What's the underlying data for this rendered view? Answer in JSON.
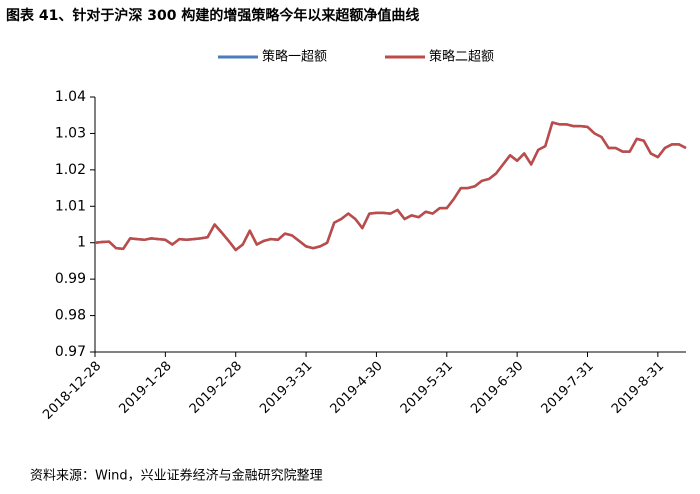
{
  "title": "图表 41、针对于沪深 300 构建的增强策略今年以来超额净值曲线",
  "source": "资料来源：Wind，兴业证券经济与金融研究院整理",
  "chart_data": {
    "type": "line",
    "categories": [
      "2018-12-28",
      null,
      null,
      null,
      null,
      null,
      null,
      null,
      null,
      null,
      "2019-1-28",
      null,
      null,
      null,
      null,
      null,
      null,
      null,
      null,
      null,
      "2019-2-28",
      null,
      null,
      null,
      null,
      null,
      null,
      null,
      null,
      null,
      "2019-3-31",
      null,
      null,
      null,
      null,
      null,
      null,
      null,
      null,
      null,
      "2019-4-30",
      null,
      null,
      null,
      null,
      null,
      null,
      null,
      null,
      null,
      "2019-5-31",
      null,
      null,
      null,
      null,
      null,
      null,
      null,
      null,
      null,
      "2019-6-30",
      null,
      null,
      null,
      null,
      null,
      null,
      null,
      null,
      null,
      "2019-7-31",
      null,
      null,
      null,
      null,
      null,
      null,
      null,
      null,
      null,
      "2019-8-31",
      null,
      null,
      null,
      null
    ],
    "series": [
      {
        "name": "策略一超额",
        "color": "#4a7ebb",
        "values": [
          1.0,
          1.0002,
          1.0003,
          0.9985,
          0.9983,
          1.0012,
          1.001,
          1.0008,
          1.0012,
          1.001,
          1.0008,
          0.9995,
          1.001,
          1.0008,
          1.001,
          1.0012,
          1.0015,
          1.005,
          1.0028,
          1.0005,
          0.998,
          0.9995,
          1.0033,
          0.9995,
          1.0005,
          1.001,
          1.0008,
          1.0025,
          1.002,
          1.0005,
          0.999,
          0.9985,
          0.999,
          1.0,
          1.0055,
          1.0065,
          1.008,
          1.0065,
          1.004,
          1.008,
          1.0082,
          1.0082,
          1.008,
          1.009,
          1.0065,
          1.0075,
          1.007,
          1.0085,
          1.008,
          1.0095,
          1.0095,
          1.012,
          1.015,
          1.015,
          1.0155,
          1.017,
          1.0175,
          1.019,
          1.0215,
          1.024,
          1.0225,
          1.0245,
          1.0215,
          1.0255,
          1.0265,
          1.033,
          1.0325,
          1.0325,
          1.032,
          1.032,
          1.0318,
          1.03,
          1.029,
          1.026,
          1.026,
          1.025,
          1.025,
          1.0285,
          1.028,
          1.0245,
          1.0235,
          1.026,
          1.027,
          1.027,
          1.026
        ]
      },
      {
        "name": "策略二超额",
        "color": "#be4b48",
        "values": [
          1.0,
          1.0002,
          1.0003,
          0.9985,
          0.9983,
          1.0012,
          1.001,
          1.0008,
          1.0012,
          1.001,
          1.0008,
          0.9995,
          1.001,
          1.0008,
          1.001,
          1.0012,
          1.0015,
          1.005,
          1.0028,
          1.0005,
          0.998,
          0.9995,
          1.0033,
          0.9995,
          1.0005,
          1.001,
          1.0008,
          1.0025,
          1.002,
          1.0005,
          0.999,
          0.9985,
          0.999,
          1.0,
          1.0055,
          1.0065,
          1.008,
          1.0065,
          1.004,
          1.008,
          1.0082,
          1.0082,
          1.008,
          1.009,
          1.0065,
          1.0075,
          1.007,
          1.0085,
          1.008,
          1.0095,
          1.0095,
          1.012,
          1.015,
          1.015,
          1.0155,
          1.017,
          1.0175,
          1.019,
          1.0215,
          1.024,
          1.0225,
          1.0245,
          1.0215,
          1.0255,
          1.0265,
          1.033,
          1.0325,
          1.0325,
          1.032,
          1.032,
          1.0318,
          1.03,
          1.029,
          1.026,
          1.026,
          1.025,
          1.025,
          1.0285,
          1.028,
          1.0245,
          1.0235,
          1.026,
          1.027,
          1.027,
          1.026
        ]
      }
    ],
    "ylim": [
      0.97,
      1.04
    ],
    "yticks": [
      0.97,
      0.98,
      0.99,
      1,
      1.01,
      1.02,
      1.03,
      1.04
    ],
    "grid": false,
    "legend": "top"
  }
}
